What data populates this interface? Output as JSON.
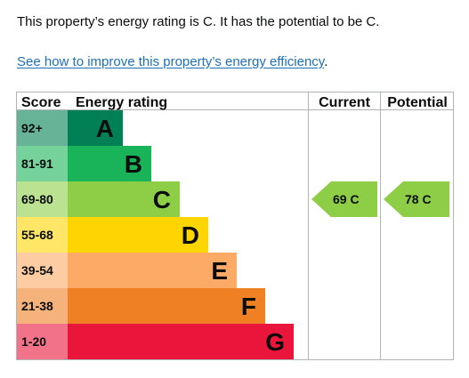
{
  "summary": {
    "text": "This property’s energy rating is C. It has the potential to be C.",
    "link_text": "See how to improve this property’s energy efficiency",
    "link_suffix": "."
  },
  "chart": {
    "headers": {
      "score": "Score",
      "energy_rating": "Energy rating",
      "current": "Current",
      "potential": "Potential"
    },
    "bands": [
      {
        "score": "92+",
        "letter": "A",
        "color": "#008054",
        "score_bg": "#66b398"
      },
      {
        "score": "81-91",
        "letter": "B",
        "color": "#19b459",
        "score_bg": "#75d29b"
      },
      {
        "score": "69-80",
        "letter": "C",
        "color": "#8dce46",
        "score_bg": "#bbe290"
      },
      {
        "score": "55-68",
        "letter": "D",
        "color": "#ffd500",
        "score_bg": "#ffe666"
      },
      {
        "score": "39-54",
        "letter": "E",
        "color": "#fcaa65",
        "score_bg": "#fdcca3"
      },
      {
        "score": "21-38",
        "letter": "F",
        "color": "#ef8023",
        "score_bg": "#f5b37b"
      },
      {
        "score": "1-20",
        "letter": "G",
        "color": "#e9153b",
        "score_bg": "#f27389"
      }
    ],
    "current": {
      "value": 69,
      "band": "C",
      "label": "69 C",
      "color": "#8dce46"
    },
    "potential": {
      "value": 78,
      "band": "C",
      "label": "78 C",
      "color": "#8dce46"
    }
  }
}
